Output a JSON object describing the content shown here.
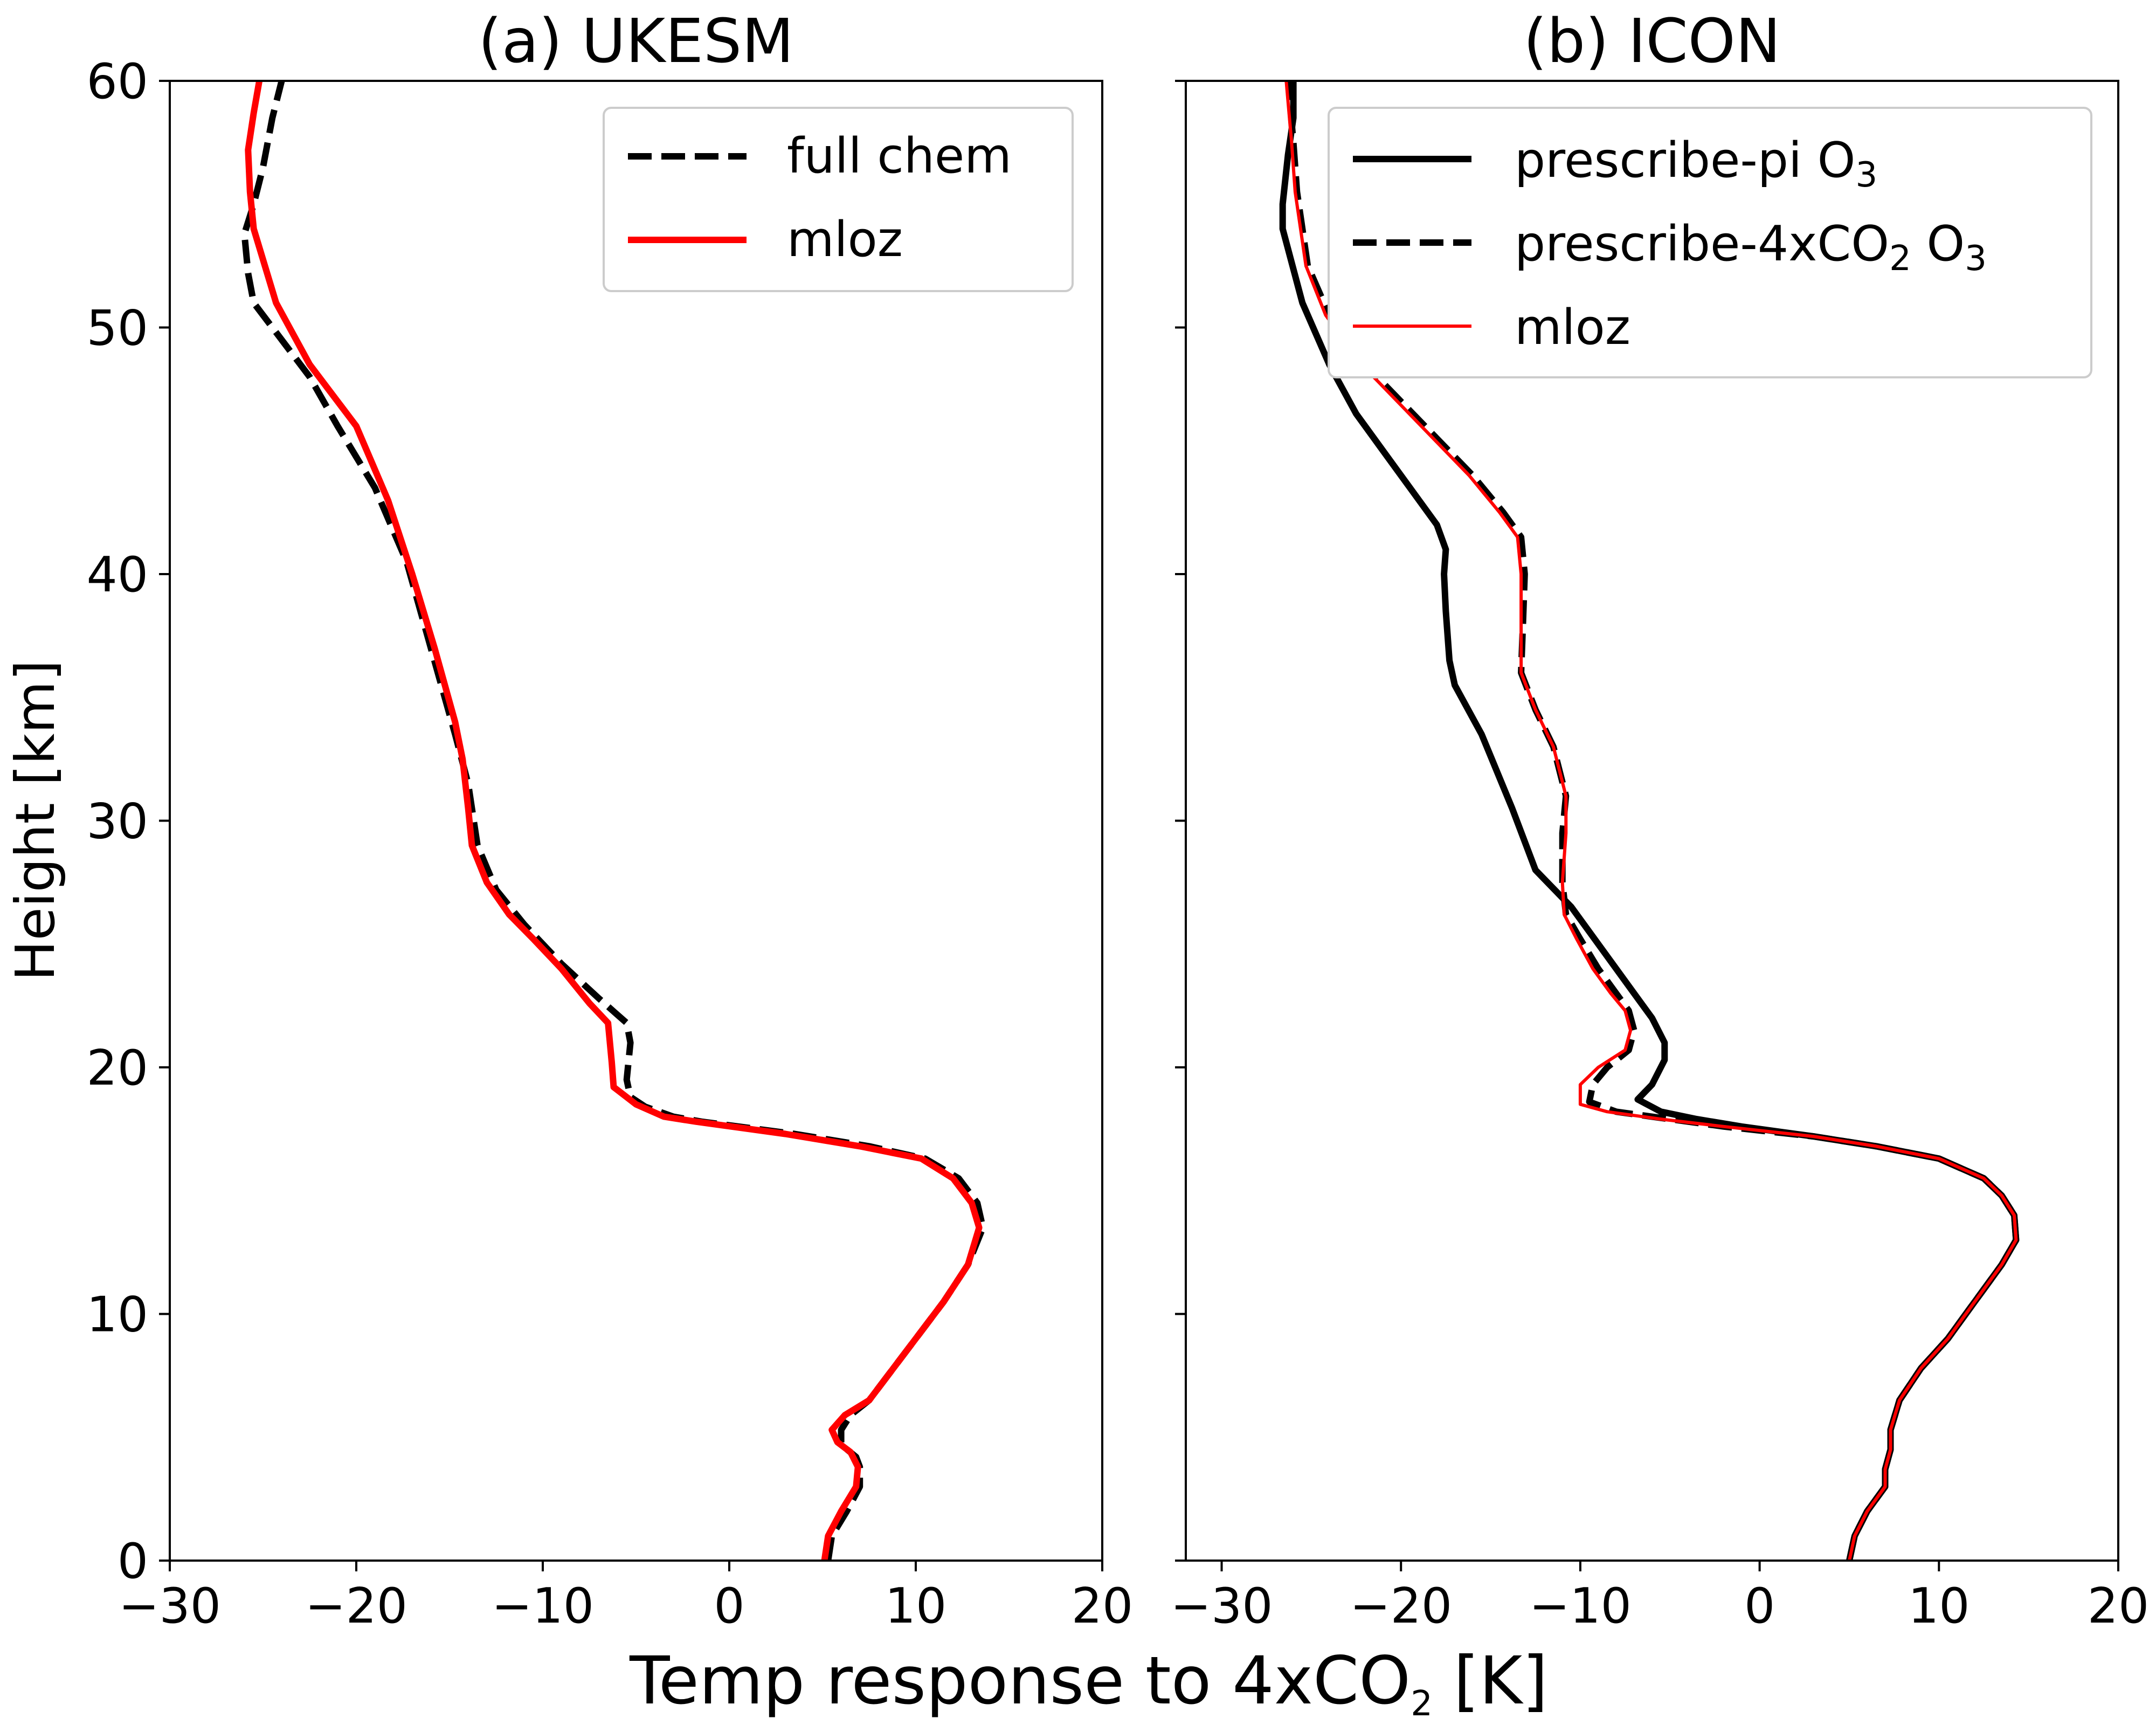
{
  "chart_data": [
    {
      "type": "line",
      "title": "(a) UKESM",
      "xlabel": "Temp response to 4xCO2 [K]",
      "ylabel": "Height [km]",
      "xlim": [
        -30,
        20
      ],
      "ylim": [
        0,
        60
      ],
      "xticks": [
        -30,
        -20,
        -10,
        0,
        10,
        20
      ],
      "yticks": [
        0,
        10,
        20,
        30,
        40,
        50,
        60
      ],
      "xtick_labels": [
        "−30",
        "−20",
        "−10",
        "0",
        "10",
        "20"
      ],
      "ytick_labels": [
        "0",
        "10",
        "20",
        "30",
        "40",
        "50",
        "60"
      ],
      "legend": "top-right",
      "series": [
        {
          "name": "full chem",
          "color": "#000000",
          "style": "dashed",
          "points": [
            [
              5.3,
              0
            ],
            [
              5.5,
              1
            ],
            [
              6.3,
              2
            ],
            [
              7.0,
              3
            ],
            [
              7.0,
              3.8
            ],
            [
              6.8,
              4.2
            ],
            [
              6.0,
              4.7
            ],
            [
              6.0,
              5.3
            ],
            [
              6.5,
              5.9
            ],
            [
              7.5,
              6.5
            ],
            [
              8.5,
              7.5
            ],
            [
              10.0,
              9
            ],
            [
              11.5,
              10.5
            ],
            [
              12.8,
              12
            ],
            [
              13.6,
              13.5
            ],
            [
              13.3,
              14.5
            ],
            [
              12.3,
              15.5
            ],
            [
              10.5,
              16.3
            ],
            [
              7.5,
              16.8
            ],
            [
              3.5,
              17.3
            ],
            [
              -1.5,
              17.8
            ],
            [
              -3.0,
              18.0
            ],
            [
              -4.5,
              18.4
            ],
            [
              -5.3,
              18.8
            ],
            [
              -5.5,
              19.5
            ],
            [
              -5.3,
              21.0
            ],
            [
              -5.5,
              21.8
            ],
            [
              -7.0,
              22.8
            ],
            [
              -9.0,
              24.2
            ],
            [
              -11.0,
              25.8
            ],
            [
              -12.5,
              27.2
            ],
            [
              -13.5,
              29.0
            ],
            [
              -14.0,
              31.5
            ],
            [
              -14.7,
              33.5
            ],
            [
              -16.0,
              37.0
            ],
            [
              -17.3,
              40.5
            ],
            [
              -19.0,
              43.5
            ],
            [
              -21.0,
              46.0
            ],
            [
              -22.5,
              48.0
            ],
            [
              -24.0,
              49.5
            ],
            [
              -25.5,
              51.0
            ],
            [
              -25.8,
              52.2
            ],
            [
              -26.0,
              53.8
            ],
            [
              -25.5,
              55.0
            ],
            [
              -25.0,
              56.5
            ],
            [
              -24.5,
              58.5
            ],
            [
              -24.0,
              60.0
            ]
          ]
        },
        {
          "name": "mloz",
          "color": "#ff0000",
          "style": "solid",
          "points": [
            [
              5.1,
              0
            ],
            [
              5.3,
              1
            ],
            [
              6.0,
              2
            ],
            [
              6.8,
              3
            ],
            [
              6.9,
              3.8
            ],
            [
              6.5,
              4.4
            ],
            [
              5.8,
              4.8
            ],
            [
              5.5,
              5.3
            ],
            [
              6.2,
              5.9
            ],
            [
              7.5,
              6.5
            ],
            [
              8.5,
              7.5
            ],
            [
              10.0,
              9
            ],
            [
              11.5,
              10.5
            ],
            [
              12.8,
              12
            ],
            [
              13.4,
              13.5
            ],
            [
              13.0,
              14.5
            ],
            [
              12.0,
              15.5
            ],
            [
              10.3,
              16.3
            ],
            [
              7.0,
              16.8
            ],
            [
              3.0,
              17.3
            ],
            [
              -1.8,
              17.8
            ],
            [
              -3.5,
              18.0
            ],
            [
              -5.0,
              18.5
            ],
            [
              -6.2,
              19.2
            ],
            [
              -6.3,
              20.2
            ],
            [
              -6.5,
              21.8
            ],
            [
              -7.5,
              22.6
            ],
            [
              -9.0,
              24.0
            ],
            [
              -10.5,
              25.2
            ],
            [
              -11.8,
              26.2
            ],
            [
              -13.0,
              27.5
            ],
            [
              -13.8,
              29.0
            ],
            [
              -14.0,
              30.5
            ],
            [
              -14.3,
              32.5
            ],
            [
              -14.7,
              34.0
            ],
            [
              -15.8,
              37.0
            ],
            [
              -17.0,
              40.0
            ],
            [
              -18.3,
              43.0
            ],
            [
              -20.0,
              46.0
            ],
            [
              -22.5,
              48.5
            ],
            [
              -24.3,
              51.0
            ],
            [
              -25.5,
              54.0
            ],
            [
              -25.7,
              55.5
            ],
            [
              -25.8,
              57.2
            ],
            [
              -25.5,
              58.7
            ],
            [
              -25.2,
              60.0
            ]
          ]
        }
      ]
    },
    {
      "type": "line",
      "title": "(b) ICON",
      "xlabel": "Temp response to 4xCO2 [K]",
      "ylabel": "",
      "xlim": [
        -32,
        20
      ],
      "ylim": [
        0,
        60
      ],
      "xticks": [
        -30,
        -20,
        -10,
        0,
        10,
        20
      ],
      "yticks": [
        0,
        10,
        20,
        30,
        40,
        50,
        60
      ],
      "xtick_labels": [
        "−30",
        "−20",
        "−10",
        "0",
        "10",
        "20"
      ],
      "legend": "top-right",
      "series": [
        {
          "name": "prescribe-pi O3",
          "color": "#000000",
          "style": "solid",
          "points": [
            [
              5.0,
              0
            ],
            [
              5.3,
              1
            ],
            [
              6.0,
              2
            ],
            [
              7.0,
              3
            ],
            [
              7.0,
              3.7
            ],
            [
              7.3,
              4.5
            ],
            [
              7.3,
              5.3
            ],
            [
              7.8,
              6.5
            ],
            [
              9.0,
              7.8
            ],
            [
              10.5,
              9
            ],
            [
              12.0,
              10.5
            ],
            [
              13.5,
              12
            ],
            [
              14.3,
              13
            ],
            [
              14.2,
              14
            ],
            [
              13.5,
              14.8
            ],
            [
              12.5,
              15.5
            ],
            [
              10.0,
              16.3
            ],
            [
              6.5,
              16.8
            ],
            [
              3.0,
              17.2
            ],
            [
              -1.0,
              17.6
            ],
            [
              -3.5,
              17.9
            ],
            [
              -5.5,
              18.2
            ],
            [
              -6.8,
              18.7
            ],
            [
              -6.0,
              19.3
            ],
            [
              -5.3,
              20.3
            ],
            [
              -5.3,
              21.0
            ],
            [
              -6.0,
              22.0
            ],
            [
              -7.0,
              23.0
            ],
            [
              -8.3,
              24.3
            ],
            [
              -9.5,
              25.5
            ],
            [
              -10.5,
              26.5
            ],
            [
              -12.5,
              28.0
            ],
            [
              -13.8,
              30.5
            ],
            [
              -15.5,
              33.5
            ],
            [
              -17.0,
              35.5
            ],
            [
              -17.3,
              36.5
            ],
            [
              -17.5,
              38.5
            ],
            [
              -17.6,
              40.0
            ],
            [
              -17.5,
              41.0
            ],
            [
              -18.0,
              42.0
            ],
            [
              -19.5,
              43.5
            ],
            [
              -21.0,
              45.0
            ],
            [
              -22.5,
              46.5
            ],
            [
              -24.0,
              48.5
            ],
            [
              -25.5,
              51.0
            ],
            [
              -26.6,
              54.0
            ],
            [
              -26.6,
              55.0
            ],
            [
              -26.3,
              57.0
            ],
            [
              -26.0,
              58.5
            ],
            [
              -26.0,
              60.0
            ]
          ]
        },
        {
          "name": "prescribe-4xCO2 O3",
          "color": "#000000",
          "style": "dashed",
          "points": [
            [
              5.0,
              0
            ],
            [
              5.3,
              1
            ],
            [
              6.0,
              2
            ],
            [
              7.0,
              3
            ],
            [
              7.0,
              3.7
            ],
            [
              7.3,
              4.5
            ],
            [
              7.3,
              5.3
            ],
            [
              7.8,
              6.5
            ],
            [
              9.0,
              7.8
            ],
            [
              10.5,
              9
            ],
            [
              12.0,
              10.5
            ],
            [
              13.5,
              12
            ],
            [
              14.3,
              13
            ],
            [
              14.2,
              14
            ],
            [
              13.5,
              14.8
            ],
            [
              12.5,
              15.5
            ],
            [
              10.0,
              16.3
            ],
            [
              6.5,
              16.8
            ],
            [
              3.0,
              17.2
            ],
            [
              -2.0,
              17.6
            ],
            [
              -5.0,
              17.9
            ],
            [
              -8.0,
              18.2
            ],
            [
              -9.5,
              18.6
            ],
            [
              -9.3,
              19.3
            ],
            [
              -8.5,
              20.0
            ],
            [
              -7.3,
              20.7
            ],
            [
              -7.0,
              21.5
            ],
            [
              -7.3,
              22.3
            ],
            [
              -8.0,
              23.0
            ],
            [
              -9.0,
              24.0
            ],
            [
              -10.0,
              25.2
            ],
            [
              -10.8,
              26.2
            ],
            [
              -11.0,
              27.5
            ],
            [
              -11.0,
              29.5
            ],
            [
              -10.8,
              31.0
            ],
            [
              -11.5,
              33.0
            ],
            [
              -12.5,
              34.5
            ],
            [
              -13.3,
              36.0
            ],
            [
              -13.2,
              38.0
            ],
            [
              -13.1,
              40.0
            ],
            [
              -13.3,
              41.5
            ],
            [
              -14.3,
              42.5
            ],
            [
              -16.0,
              44.0
            ],
            [
              -18.0,
              45.5
            ],
            [
              -20.0,
              47.0
            ],
            [
              -22.0,
              48.5
            ],
            [
              -24.0,
              50.5
            ],
            [
              -25.2,
              52.5
            ],
            [
              -25.5,
              54.0
            ],
            [
              -25.8,
              55.5
            ],
            [
              -26.0,
              57.5
            ],
            [
              -26.3,
              60.0
            ]
          ]
        },
        {
          "name": "mloz",
          "color": "#ff0000",
          "style": "solid",
          "points": [
            [
              5.0,
              0
            ],
            [
              5.3,
              1
            ],
            [
              6.0,
              2
            ],
            [
              7.0,
              3
            ],
            [
              7.0,
              3.7
            ],
            [
              7.3,
              4.5
            ],
            [
              7.3,
              5.3
            ],
            [
              7.8,
              6.5
            ],
            [
              9.0,
              7.8
            ],
            [
              10.5,
              9
            ],
            [
              12.0,
              10.5
            ],
            [
              13.5,
              12
            ],
            [
              14.3,
              13
            ],
            [
              14.2,
              14
            ],
            [
              13.5,
              14.8
            ],
            [
              12.5,
              15.5
            ],
            [
              10.0,
              16.3
            ],
            [
              6.5,
              16.8
            ],
            [
              3.0,
              17.2
            ],
            [
              -2.0,
              17.6
            ],
            [
              -5.5,
              17.9
            ],
            [
              -8.5,
              18.2
            ],
            [
              -10.0,
              18.5
            ],
            [
              -10.0,
              19.3
            ],
            [
              -9.0,
              20.0
            ],
            [
              -7.5,
              20.7
            ],
            [
              -7.2,
              21.5
            ],
            [
              -7.5,
              22.3
            ],
            [
              -8.3,
              23.0
            ],
            [
              -9.3,
              24.0
            ],
            [
              -10.2,
              25.2
            ],
            [
              -10.9,
              26.2
            ],
            [
              -11.0,
              27.5
            ],
            [
              -10.8,
              29.5
            ],
            [
              -10.8,
              31.0
            ],
            [
              -11.5,
              33.0
            ],
            [
              -12.5,
              34.5
            ],
            [
              -13.3,
              36.0
            ],
            [
              -13.3,
              38.0
            ],
            [
              -13.3,
              40.0
            ],
            [
              -13.5,
              41.5
            ],
            [
              -14.5,
              42.5
            ],
            [
              -16.2,
              44.0
            ],
            [
              -18.2,
              45.5
            ],
            [
              -20.2,
              47.0
            ],
            [
              -22.2,
              48.5
            ],
            [
              -24.2,
              50.5
            ],
            [
              -25.3,
              52.5
            ],
            [
              -25.6,
              54.0
            ],
            [
              -25.9,
              55.5
            ],
            [
              -26.1,
              57.5
            ],
            [
              -26.4,
              60.0
            ]
          ]
        }
      ]
    }
  ]
}
